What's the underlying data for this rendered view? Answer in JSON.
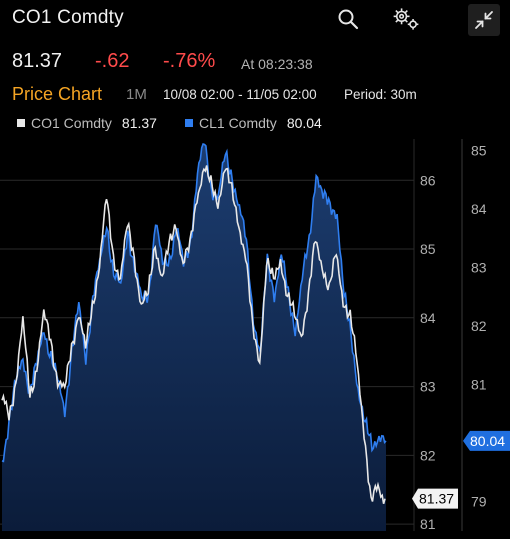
{
  "header": {
    "title": "CO1 Comdty",
    "icons": [
      "search-icon",
      "gear-icon",
      "collapse-icon"
    ]
  },
  "quote": {
    "last": "81.37",
    "change": "-.62",
    "change_pct": "-.76%",
    "as_of": "At 08:23:38",
    "negative_color": "#ff4b4b"
  },
  "chart_header": {
    "title": "Price Chart",
    "range": "1M",
    "dates": "10/08 02:00 - 11/05 02:00",
    "period": "Period: 30m",
    "title_color": "#f5a524"
  },
  "legend": [
    {
      "name": "CO1 Comdty",
      "value": "81.37",
      "color": "#e8e8e8"
    },
    {
      "name": "CL1 Comdty",
      "value": "80.04",
      "color": "#2f7ef0"
    }
  ],
  "chart_data": {
    "type": "line",
    "x_label": "",
    "left_axis": {
      "series": "CO1 Comdty",
      "ticks": [
        81,
        82,
        83,
        84,
        85,
        86
      ],
      "ylim": [
        80.9,
        86.6
      ]
    },
    "right_axis": {
      "series": "CL1 Comdty",
      "ticks": [
        79,
        80,
        81,
        82,
        83,
        84,
        85
      ],
      "ylim": [
        78.5,
        85.2
      ]
    },
    "grid": true,
    "series": [
      {
        "name": "CO1 Comdty",
        "axis": "left",
        "color": "#e8e8e8",
        "last_label": "81.37",
        "values": [
          82.8,
          82.6,
          83.1,
          83.9,
          82.9,
          83.3,
          84.0,
          83.7,
          83.1,
          82.9,
          83.6,
          84.1,
          83.5,
          84.2,
          84.8,
          85.7,
          84.9,
          84.6,
          85.3,
          84.9,
          84.2,
          84.3,
          85.1,
          84.6,
          85.0,
          85.4,
          84.8,
          85.0,
          85.8,
          86.2,
          85.9,
          85.7,
          86.2,
          85.8,
          85.4,
          84.9,
          83.8,
          83.4,
          84.8,
          84.5,
          84.9,
          84.3,
          84.0,
          83.8,
          84.3,
          85.1,
          84.8,
          84.4,
          84.9,
          84.3,
          84.0,
          83.3,
          82.4,
          81.3,
          81.5,
          81.37
        ]
      },
      {
        "name": "CL1 Comdty",
        "axis": "right",
        "color": "#2f7ef0",
        "last_label": "80.04",
        "values": [
          79.7,
          80.4,
          81.0,
          81.5,
          80.9,
          81.3,
          82.0,
          81.5,
          81.0,
          80.6,
          81.6,
          82.3,
          81.5,
          82.5,
          83.0,
          83.8,
          82.9,
          82.6,
          83.7,
          83.0,
          82.4,
          82.6,
          83.8,
          83.0,
          83.2,
          83.7,
          83.0,
          83.5,
          84.6,
          85.1,
          84.4,
          84.2,
          84.9,
          84.6,
          84.0,
          83.4,
          82.2,
          81.5,
          83.1,
          82.6,
          83.2,
          82.5,
          82.0,
          82.8,
          83.4,
          84.7,
          84.2,
          84.0,
          84.0,
          82.5,
          81.8,
          81.0,
          80.3,
          79.9,
          80.2,
          80.04
        ]
      }
    ]
  }
}
